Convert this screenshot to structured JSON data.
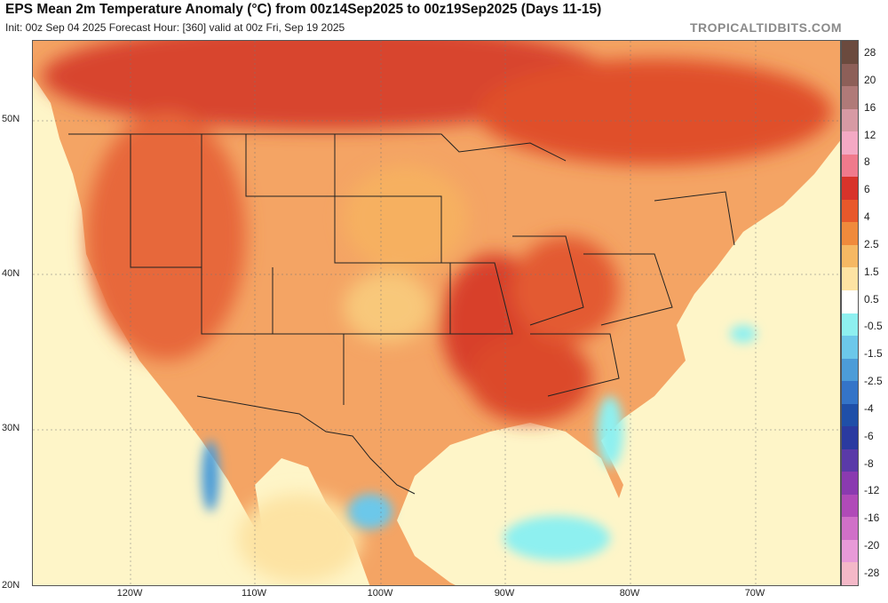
{
  "header": {
    "title": "EPS Mean 2m Temperature Anomaly (°C) from 00z14Sep2025 to 00z19Sep2025 (Days 11-15)",
    "subtitle": "Init: 00z Sep 04 2025   Forecast Hour: [360]   valid at 00z Fri, Sep 19 2025",
    "brand": "TROPICALTIDBITS.COM"
  },
  "map_axes": {
    "latitudes": [
      "50N",
      "40N",
      "30N",
      "20N"
    ],
    "longitudes": [
      "120W",
      "110W",
      "100W",
      "90W",
      "80W",
      "70W"
    ]
  },
  "colorbar": {
    "labels": [
      "28",
      "20",
      "16",
      "12",
      "8",
      "6",
      "4",
      "2.5",
      "1.5",
      "0.5",
      "-0.5",
      "-1.5",
      "-2.5",
      "-4",
      "-6",
      "-8",
      "-12",
      "-16",
      "-20",
      "-28"
    ],
    "colors": [
      "#6b4a3e",
      "#8d5f58",
      "#b07a78",
      "#d79aa4",
      "#f4a9c4",
      "#f07a8c",
      "#d8332a",
      "#e8582b",
      "#f08a3c",
      "#f6b863",
      "#fde3a3",
      "#ffffff",
      "#8ef0f0",
      "#6cc8ea",
      "#4c9cd8",
      "#3474c8",
      "#1f4fa8",
      "#2a3aa0",
      "#5a3aa8",
      "#8a3ab0",
      "#b04ab8",
      "#d070c8",
      "#e89ad8",
      "#f4b8c8"
    ]
  },
  "colors": {
    "background": "#ffffff",
    "land_base": "#f3a160",
    "ocean_base": "#fef5c8",
    "border_line": "#222222"
  }
}
